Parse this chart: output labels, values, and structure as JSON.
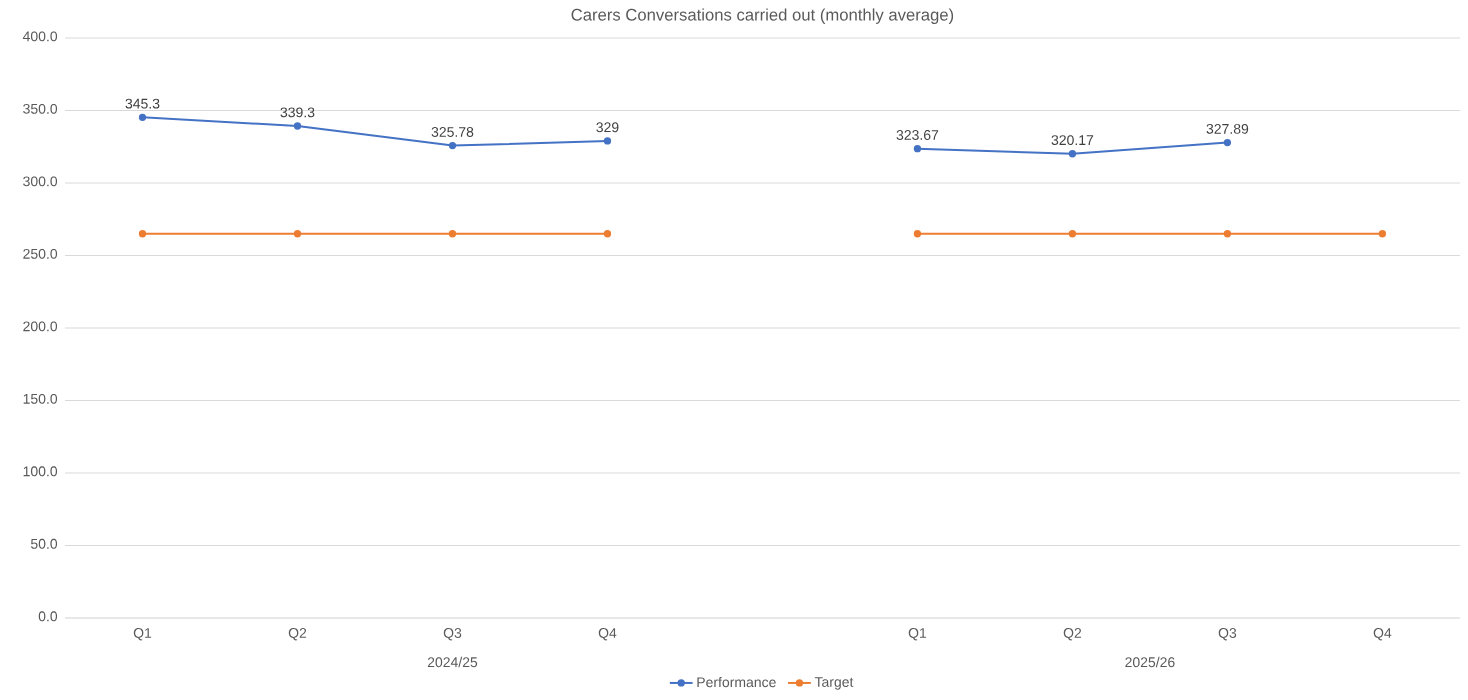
{
  "chart_data": {
    "type": "line",
    "title": "Carers Conversations carried out (monthly average)",
    "categories": [
      "Q1",
      "Q2",
      "Q3",
      "Q4",
      null,
      "Q1",
      "Q2",
      "Q3",
      "Q4"
    ],
    "annotations": [
      "2024/25",
      "2025/26"
    ],
    "series": [
      {
        "name": "Performance",
        "color": "#4472c4",
        "values": [
          345.3,
          339.3,
          325.78,
          329,
          null,
          323.67,
          320.17,
          327.89,
          null
        ],
        "value_labels": [
          "345.3",
          "339.3",
          "325.78",
          "329",
          null,
          "323.67",
          "320.17",
          "327.89",
          null
        ]
      },
      {
        "name": "Target",
        "color": "#ed7d31",
        "values": [
          265,
          265,
          265,
          265,
          null,
          265,
          265,
          265,
          265
        ]
      }
    ],
    "ylim": [
      0,
      400
    ],
    "yticks": [
      {
        "value": 0,
        "label": "0.0"
      },
      {
        "value": 50,
        "label": "50.0"
      },
      {
        "value": 100,
        "label": "100.0"
      },
      {
        "value": 150,
        "label": "150.0"
      },
      {
        "value": 200,
        "label": "200.0"
      },
      {
        "value": 250,
        "label": "250.0"
      },
      {
        "value": 300,
        "label": "300.0"
      },
      {
        "value": 350,
        "label": "350.0"
      },
      {
        "value": 400,
        "label": "400.0"
      }
    ],
    "grid": "y",
    "legend": "bottom",
    "marker": "circle",
    "line_style": "solid"
  }
}
